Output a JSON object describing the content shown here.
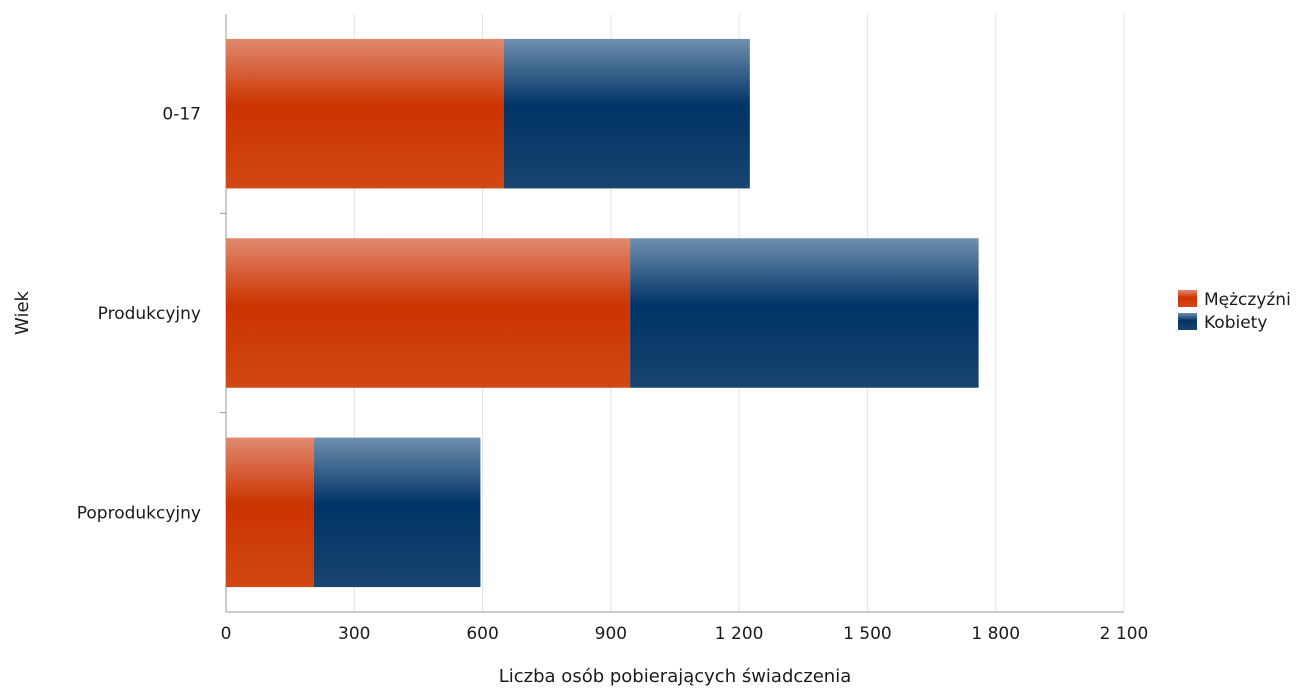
{
  "chart_data": {
    "type": "bar",
    "orientation": "horizontal",
    "stacked": true,
    "title": "",
    "xlabel": "Liczba osób pobierających świadczenia",
    "ylabel": "Wiek",
    "categories": [
      "0-17",
      "Produkcyjny",
      "Poprodukcyjny"
    ],
    "series": [
      {
        "name": "Mężczyźni",
        "color": "#cc3300",
        "values": [
          650,
          945,
          205
        ]
      },
      {
        "name": "Kobiety",
        "color": "#003366",
        "values": [
          575,
          815,
          390
        ]
      }
    ],
    "xlim": [
      0,
      2100
    ],
    "xticks": [
      0,
      300,
      600,
      900,
      1200,
      1500,
      1800,
      2100
    ],
    "xtick_labels": [
      "0",
      "300",
      "600",
      "900",
      "1 200",
      "1 500",
      "1 800",
      "2 100"
    ],
    "grid": "vertical",
    "legend_position": "right"
  }
}
